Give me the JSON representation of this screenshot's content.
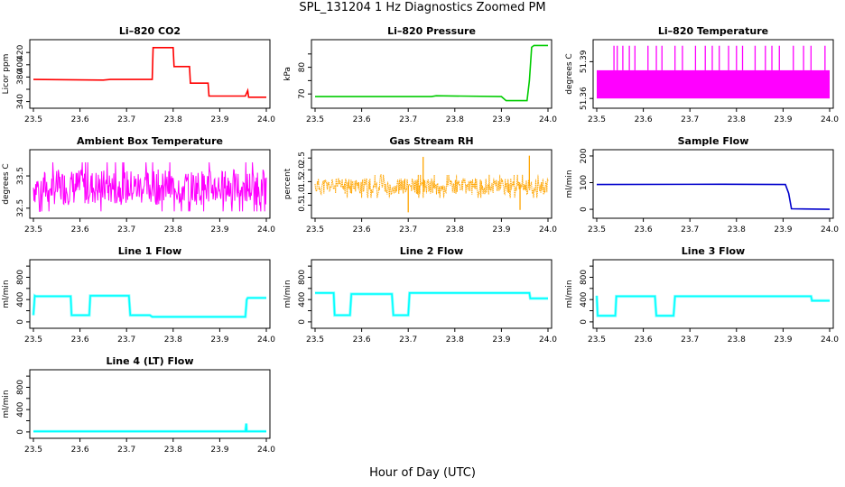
{
  "page": {
    "title": "SPL_131204  1 Hz Diagnostics Zoomed PM",
    "xlabel": "Hour of Day (UTC)"
  },
  "chart_data": [
    {
      "type": "line",
      "title": "Li–820 CO2",
      "xlabel": "",
      "ylabel": "Licor ppm",
      "color": "#ff0000",
      "xlim": [
        23.5,
        24.0
      ],
      "ylim": [
        335,
        435
      ],
      "yticks": [
        340,
        360,
        380,
        400,
        420
      ],
      "ytick_labels": [
        "340",
        "",
        "380",
        "400",
        "420"
      ],
      "xticks": [
        "23.5",
        "23.6",
        "23.7",
        "23.8",
        "23.9",
        "24.0"
      ],
      "series": [
        {
          "x": [
            23.5,
            23.65,
            23.665,
            23.755,
            23.757,
            23.8,
            23.802,
            23.835,
            23.837,
            23.875,
            23.877,
            23.955,
            23.96,
            23.962,
            24.0
          ],
          "y": [
            376,
            375,
            376,
            376,
            428,
            428,
            397,
            397,
            370,
            370,
            349,
            349,
            358,
            347,
            347
          ]
        }
      ]
    },
    {
      "type": "line",
      "title": "Li–820 Pressure",
      "xlabel": "",
      "ylabel": "kPa",
      "color": "#00cc00",
      "xlim": [
        23.5,
        24.0
      ],
      "ylim": [
        66,
        89
      ],
      "yticks": [
        70,
        75,
        80,
        85
      ],
      "ytick_labels": [
        "70",
        "",
        "80",
        ""
      ],
      "xticks": [
        "23.5",
        "23.6",
        "23.7",
        "23.8",
        "23.9",
        "24.0"
      ],
      "series": [
        {
          "x": [
            23.5,
            23.75,
            23.76,
            23.9,
            23.91,
            23.955,
            23.96,
            23.965,
            23.97,
            24.0
          ],
          "y": [
            69.0,
            69.0,
            69.3,
            69.0,
            67.5,
            67.5,
            75,
            87.5,
            88.2,
            88.2
          ]
        }
      ]
    },
    {
      "type": "line",
      "title": "Li–820 Temperature",
      "xlabel": "",
      "ylabel": "degrees C",
      "color": "#ff00ff",
      "xlim": [
        23.5,
        24.0
      ],
      "ylim": [
        51.355,
        51.405
      ],
      "yticks": [
        51.36,
        51.39
      ],
      "ytick_labels": [
        "51.36",
        "51.39"
      ],
      "xticks": [
        "23.5",
        "23.6",
        "23.7",
        "23.8",
        "23.9",
        "24.0"
      ],
      "band": {
        "low": 51.36,
        "high": 51.383
      },
      "spike_x": [
        23.537,
        23.544,
        23.556,
        23.57,
        23.582,
        23.61,
        23.628,
        23.64,
        23.668,
        23.684,
        23.712,
        23.733,
        23.748,
        23.763,
        23.783,
        23.8,
        23.813,
        23.84,
        23.862,
        23.876,
        23.892,
        23.922,
        23.944,
        23.96,
        23.99
      ],
      "spike_y": 51.403
    },
    {
      "type": "line",
      "title": "Ambient Box Temperature",
      "xlabel": "",
      "ylabel": "degrees C",
      "color": "#ff00ff",
      "xlim": [
        23.5,
        24.0
      ],
      "ylim": [
        32.3,
        34.2
      ],
      "yticks": [
        32.5,
        33.5
      ],
      "ytick_labels": [
        "32.5",
        "33.5"
      ],
      "xticks": [
        "23.5",
        "23.6",
        "23.7",
        "23.8",
        "23.9",
        "24.0"
      ],
      "noise": {
        "center": 33.15,
        "amp": 0.55,
        "low": 32.4,
        "high": 34.1,
        "n": 420,
        "seed": 7
      }
    },
    {
      "type": "line",
      "title": "Gas Stream RH",
      "xlabel": "",
      "ylabel": "percent",
      "color": "#ffa500",
      "xlim": [
        23.5,
        24.0
      ],
      "ylim": [
        0.1,
        2.7
      ],
      "yticks": [
        0.5,
        1.0,
        1.5,
        2.0,
        2.5
      ],
      "ytick_labels": [
        "0.5",
        "1.0",
        "1.5",
        "2.0",
        "2.5"
      ],
      "xticks": [
        "23.5",
        "23.6",
        "23.7",
        "23.8",
        "23.9",
        "24.0"
      ],
      "noise": {
        "center": 1.3,
        "amp": 0.35,
        "low": 0.2,
        "high": 2.6,
        "n": 420,
        "seed": 11
      },
      "spikes": [
        {
          "x": 23.7,
          "y": 0.2
        },
        {
          "x": 23.732,
          "y": 2.55
        },
        {
          "x": 23.96,
          "y": 2.6
        },
        {
          "x": 23.94,
          "y": 0.3
        }
      ]
    },
    {
      "type": "line",
      "title": "Sample Flow",
      "xlabel": "",
      "ylabel": "ml/min",
      "color": "#0000cc",
      "xlim": [
        23.5,
        24.0
      ],
      "ylim": [
        -20,
        210
      ],
      "yticks": [
        0,
        100,
        200
      ],
      "ytick_labels": [
        "0",
        "100",
        "200"
      ],
      "xticks": [
        "23.5",
        "23.6",
        "23.7",
        "23.8",
        "23.9",
        "24.0"
      ],
      "series": [
        {
          "x": [
            23.5,
            23.77,
            23.905,
            23.912,
            23.918,
            24.0
          ],
          "y": [
            93,
            94,
            93,
            60,
            2,
            0
          ]
        }
      ]
    },
    {
      "type": "line",
      "title": "Line 1 Flow",
      "xlabel": "",
      "ylabel": "ml/min",
      "color": "#00ffff",
      "xlim": [
        23.5,
        24.0
      ],
      "ylim": [
        -50,
        1050
      ],
      "yticks": [
        0,
        200,
        400,
        600,
        800,
        1000
      ],
      "ytick_labels": [
        "0",
        "",
        "400",
        "",
        "800",
        ""
      ],
      "xticks": [
        "23.5",
        "23.6",
        "23.7",
        "23.8",
        "23.9",
        "24.0"
      ],
      "series": [
        {
          "x": [
            23.5,
            23.503,
            23.505,
            23.58,
            23.582,
            23.62,
            23.622,
            23.705,
            23.708,
            23.75,
            23.755,
            23.955,
            23.958,
            23.96,
            24.0
          ],
          "y": [
            120,
            470,
            460,
            460,
            120,
            120,
            470,
            470,
            120,
            120,
            90,
            90,
            400,
            430,
            430
          ]
        }
      ]
    },
    {
      "type": "line",
      "title": "Line 2 Flow",
      "xlabel": "",
      "ylabel": "ml/min",
      "color": "#00ffff",
      "xlim": [
        23.5,
        24.0
      ],
      "ylim": [
        -50,
        1050
      ],
      "yticks": [
        0,
        200,
        400,
        600,
        800,
        1000
      ],
      "ytick_labels": [
        "0",
        "",
        "400",
        "",
        "800",
        ""
      ],
      "xticks": [
        "23.5",
        "23.6",
        "23.7",
        "23.8",
        "23.9",
        "24.0"
      ],
      "series": [
        {
          "x": [
            23.5,
            23.54,
            23.542,
            23.575,
            23.578,
            23.665,
            23.668,
            23.7,
            23.703,
            23.96,
            23.962,
            24.0
          ],
          "y": [
            520,
            520,
            120,
            120,
            500,
            500,
            120,
            120,
            520,
            520,
            420,
            420
          ]
        }
      ]
    },
    {
      "type": "line",
      "title": "Line 3 Flow",
      "xlabel": "",
      "ylabel": "ml/min",
      "color": "#00ffff",
      "xlim": [
        23.5,
        24.0
      ],
      "ylim": [
        -50,
        1050
      ],
      "yticks": [
        0,
        200,
        400,
        600,
        800,
        1000
      ],
      "ytick_labels": [
        "0",
        "",
        "400",
        "",
        "800",
        ""
      ],
      "xticks": [
        "23.5",
        "23.6",
        "23.7",
        "23.8",
        "23.9",
        "24.0"
      ],
      "series": [
        {
          "x": [
            23.5,
            23.502,
            23.54,
            23.542,
            23.625,
            23.628,
            23.665,
            23.668,
            23.96,
            23.962,
            24.0
          ],
          "y": [
            470,
            110,
            110,
            460,
            460,
            110,
            110,
            460,
            460,
            380,
            380
          ]
        }
      ]
    },
    {
      "type": "line",
      "title": "Line 4 (LT) Flow",
      "xlabel": "",
      "ylabel": "ml/min",
      "color": "#00ffff",
      "xlim": [
        23.5,
        24.0
      ],
      "ylim": [
        -50,
        1050
      ],
      "yticks": [
        0,
        200,
        400,
        600,
        800,
        1000
      ],
      "ytick_labels": [
        "0",
        "",
        "400",
        "",
        "800",
        ""
      ],
      "xticks": [
        "23.5",
        "23.6",
        "23.7",
        "23.8",
        "23.9",
        "24.0"
      ],
      "series": [
        {
          "x": [
            23.5,
            23.955,
            23.957,
            23.958,
            23.96,
            24.0
          ],
          "y": [
            10,
            10,
            150,
            10,
            10,
            10
          ]
        }
      ]
    }
  ]
}
